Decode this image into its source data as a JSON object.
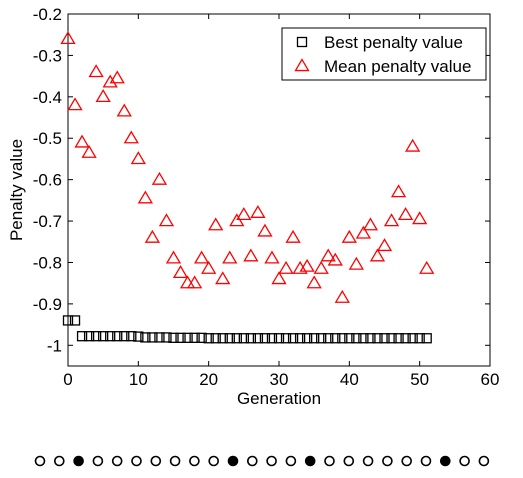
{
  "chart_data": {
    "type": "scatter",
    "title": "",
    "xlabel": "Generation",
    "ylabel": "Penalty value",
    "xlim": [
      0,
      60
    ],
    "ylim": [
      -1.05,
      -0.2
    ],
    "xticks": [
      0,
      10,
      20,
      30,
      40,
      50,
      60
    ],
    "yticks": [
      -0.2,
      -0.3,
      -0.4,
      -0.5,
      -0.6,
      -0.7,
      -0.8,
      -0.9,
      -1
    ],
    "ytick_labels": [
      "-0.2",
      "-0.3",
      "-0.4",
      "-0.5",
      "-0.6",
      "-0.7",
      "-0.8",
      "-0.9",
      "-1"
    ],
    "grid": false,
    "legend_position": "top-right",
    "series": [
      {
        "name": "Best penalty value",
        "marker": "square",
        "color": "#000000",
        "x": [
          0,
          1,
          2,
          3,
          4,
          5,
          6,
          7,
          8,
          9,
          10,
          11,
          12,
          13,
          14,
          15,
          16,
          17,
          18,
          19,
          20,
          21,
          22,
          23,
          24,
          25,
          26,
          27,
          28,
          29,
          30,
          31,
          32,
          33,
          34,
          35,
          36,
          37,
          38,
          39,
          40,
          41,
          42,
          43,
          44,
          45,
          46,
          47,
          48,
          49,
          50,
          51
        ],
        "y": [
          -0.94,
          -0.94,
          -0.978,
          -0.978,
          -0.978,
          -0.978,
          -0.978,
          -0.978,
          -0.978,
          -0.978,
          -0.979,
          -0.981,
          -0.981,
          -0.981,
          -0.981,
          -0.982,
          -0.982,
          -0.982,
          -0.982,
          -0.982,
          -0.983,
          -0.983,
          -0.983,
          -0.983,
          -0.983,
          -0.983,
          -0.983,
          -0.983,
          -0.983,
          -0.983,
          -0.983,
          -0.983,
          -0.983,
          -0.983,
          -0.983,
          -0.983,
          -0.983,
          -0.983,
          -0.983,
          -0.983,
          -0.983,
          -0.983,
          -0.983,
          -0.983,
          -0.983,
          -0.983,
          -0.983,
          -0.983,
          -0.983,
          -0.983,
          -0.983,
          -0.983
        ]
      },
      {
        "name": "Mean penalty value",
        "marker": "triangle",
        "color": "#ff0000",
        "x": [
          0,
          1,
          2,
          3,
          4,
          5,
          6,
          7,
          8,
          9,
          10,
          11,
          12,
          13,
          14,
          15,
          16,
          17,
          18,
          19,
          20,
          21,
          22,
          23,
          24,
          25,
          26,
          27,
          28,
          29,
          30,
          31,
          32,
          33,
          34,
          35,
          36,
          37,
          38,
          39,
          40,
          41,
          42,
          43,
          44,
          45,
          46,
          47,
          48,
          49,
          50,
          51
        ],
        "y": [
          -0.26,
          -0.42,
          -0.51,
          -0.535,
          -0.34,
          -0.4,
          -0.365,
          -0.355,
          -0.435,
          -0.5,
          -0.55,
          -0.645,
          -0.74,
          -0.6,
          -0.7,
          -0.79,
          -0.825,
          -0.85,
          -0.85,
          -0.79,
          -0.815,
          -0.71,
          -0.84,
          -0.79,
          -0.7,
          -0.685,
          -0.785,
          -0.68,
          -0.725,
          -0.79,
          -0.84,
          -0.815,
          -0.74,
          -0.815,
          -0.81,
          -0.85,
          -0.815,
          -0.785,
          -0.795,
          -0.885,
          -0.74,
          -0.805,
          -0.73,
          -0.71,
          -0.785,
          -0.76,
          -0.7,
          -0.63,
          -0.685,
          -0.52,
          -0.695,
          -0.815
        ]
      }
    ]
  }
}
